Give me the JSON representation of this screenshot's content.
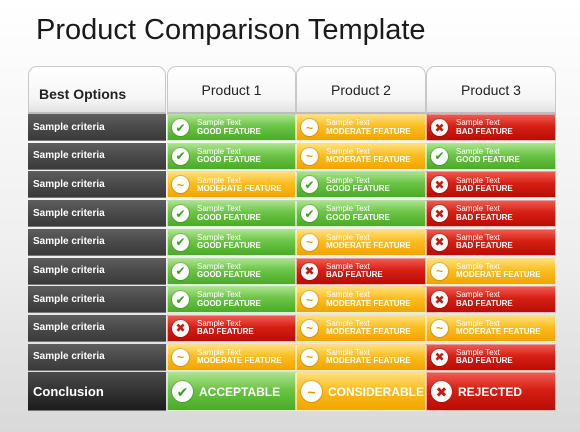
{
  "title": "Product Comparison Template",
  "header": {
    "best_options": "Best Options",
    "products": [
      "Product 1",
      "Product 2",
      "Product 3"
    ]
  },
  "icons": {
    "good": "check-icon",
    "moderate": "tilde-icon",
    "bad": "x-icon"
  },
  "colors": {
    "good": "#5bb832",
    "moderate": "#f8b412",
    "bad": "#d2170e",
    "criteria": "#4a4a4a"
  },
  "rows": [
    {
      "criteria": "Sample criteria",
      "cells": [
        {
          "status": "good",
          "text": "Sample Text",
          "feature": "GOOD FEATURE"
        },
        {
          "status": "moderate",
          "text": "Sample Text",
          "feature": "MODERATE FEATURE"
        },
        {
          "status": "bad",
          "text": "Sample Text",
          "feature": "BAD FEATURE"
        }
      ]
    },
    {
      "criteria": "Sample criteria",
      "cells": [
        {
          "status": "good",
          "text": "Sample Text",
          "feature": "GOOD FEATURE"
        },
        {
          "status": "moderate",
          "text": "Sample Text",
          "feature": "MODERATE FEATURE"
        },
        {
          "status": "good",
          "text": "Sample Text",
          "feature": "GOOD FEATURE"
        }
      ]
    },
    {
      "criteria": "Sample criteria",
      "cells": [
        {
          "status": "moderate",
          "text": "Sample Text",
          "feature": "MODERATE FEATURE"
        },
        {
          "status": "good",
          "text": "Sample Text",
          "feature": "GOOD FEATURE"
        },
        {
          "status": "bad",
          "text": "Sample Text",
          "feature": "BAD FEATURE"
        }
      ]
    },
    {
      "criteria": "Sample criteria",
      "cells": [
        {
          "status": "good",
          "text": "Sample Text",
          "feature": "GOOD FEATURE"
        },
        {
          "status": "good",
          "text": "Sample Text",
          "feature": "GOOD FEATURE"
        },
        {
          "status": "bad",
          "text": "Sample Text",
          "feature": "BAD FEATURE"
        }
      ]
    },
    {
      "criteria": "Sample criteria",
      "cells": [
        {
          "status": "good",
          "text": "Sample Text",
          "feature": "GOOD FEATURE"
        },
        {
          "status": "moderate",
          "text": "Sample Text",
          "feature": "MODERATE FEATURE"
        },
        {
          "status": "bad",
          "text": "Sample Text",
          "feature": "BAD FEATURE"
        }
      ]
    },
    {
      "criteria": "Sample criteria",
      "cells": [
        {
          "status": "good",
          "text": "Sample Text",
          "feature": "GOOD FEATURE"
        },
        {
          "status": "bad",
          "text": "Sample Text",
          "feature": "BAD FEATURE"
        },
        {
          "status": "moderate",
          "text": "Sample Text",
          "feature": "MODERATE FEATURE"
        }
      ]
    },
    {
      "criteria": "Sample criteria",
      "cells": [
        {
          "status": "good",
          "text": "Sample Text",
          "feature": "GOOD FEATURE"
        },
        {
          "status": "moderate",
          "text": "Sample Text",
          "feature": "MODERATE FEATURE"
        },
        {
          "status": "bad",
          "text": "Sample Text",
          "feature": "BAD FEATURE"
        }
      ]
    },
    {
      "criteria": "Sample criteria",
      "cells": [
        {
          "status": "bad",
          "text": "Sample Text",
          "feature": "BAD FEATURE"
        },
        {
          "status": "moderate",
          "text": "Sample Text",
          "feature": "MODERATE FEATURE"
        },
        {
          "status": "moderate",
          "text": "Sample Text",
          "feature": "MODERATE FEATURE"
        }
      ]
    },
    {
      "criteria": "Sample criteria",
      "cells": [
        {
          "status": "moderate",
          "text": "Sample Text",
          "feature": "MODERATE FEATURE"
        },
        {
          "status": "moderate",
          "text": "Sample Text",
          "feature": "MODERATE FEATURE"
        },
        {
          "status": "bad",
          "text": "Sample Text",
          "feature": "BAD FEATURE"
        }
      ]
    }
  ],
  "conclusion": {
    "label": "Conclusion",
    "cells": [
      {
        "status": "good",
        "text": "ACCEPTABLE"
      },
      {
        "status": "moderate",
        "text": "CONSIDERABLE"
      },
      {
        "status": "bad",
        "text": "REJECTED"
      }
    ]
  }
}
